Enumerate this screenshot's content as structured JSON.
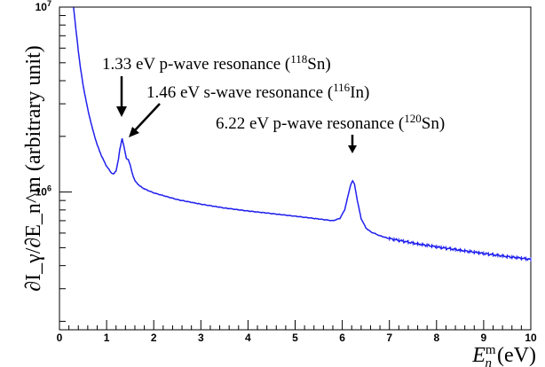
{
  "chart_data": {
    "type": "line",
    "xlabel": "E_n^m (eV)",
    "ylabel": "∂I_γ/∂E_n^m (arbitrary unit)",
    "y_scale": "log",
    "xlim": [
      0,
      10
    ],
    "ylim": [
      180000,
      10000000
    ],
    "x_ticks": [
      "0",
      "1",
      "2",
      "3",
      "4",
      "5",
      "6",
      "7",
      "8",
      "9",
      "10"
    ],
    "y_ticks": [
      {
        "value": 1000000,
        "base": "10",
        "exp": "6"
      },
      {
        "value": 10000000,
        "base": "10",
        "exp": "7"
      }
    ],
    "grid": false,
    "line_color": "#2020ee",
    "series": [
      {
        "x": [
          0.3,
          0.35,
          0.4,
          0.45,
          0.5,
          0.6,
          0.7,
          0.8,
          0.9,
          1.0,
          1.1,
          1.15,
          1.2,
          1.25,
          1.28,
          1.33,
          1.38,
          1.42,
          1.46,
          1.5,
          1.55,
          1.6,
          1.7,
          1.8,
          2.0,
          2.5,
          3.0,
          3.5,
          4.0,
          4.5,
          5.0,
          5.5,
          5.8,
          5.95,
          6.05,
          6.12,
          6.18,
          6.22,
          6.26,
          6.32,
          6.4,
          6.5,
          6.6,
          6.8,
          7.0,
          7.5,
          8.0,
          8.5,
          9.0,
          9.5,
          10.0
        ],
        "y": [
          10000000,
          7500000,
          5800000,
          4600000,
          3800000,
          2800000,
          2200000,
          1800000,
          1550000,
          1380000,
          1270000,
          1250000,
          1300000,
          1500000,
          1700000,
          1950000,
          1700000,
          1520000,
          1500000,
          1400000,
          1250000,
          1150000,
          1080000,
          1040000,
          990000,
          910000,
          860000,
          820000,
          790000,
          765000,
          740000,
          715000,
          700000,
          720000,
          800000,
          950000,
          1100000,
          1150000,
          1100000,
          900000,
          720000,
          640000,
          610000,
          580000,
          560000,
          530000,
          505000,
          485000,
          465000,
          448000,
          432000
        ]
      }
    ],
    "annotations": [
      {
        "text": "1.33 eV p-wave resonance (",
        "isotope_mass": "118",
        "element": "Sn",
        "close": ")",
        "target_x": 1.33
      },
      {
        "text": "1.46 eV s-wave resonance (",
        "isotope_mass": "116",
        "element": "In",
        "close": ")",
        "target_x": 1.46
      },
      {
        "text": "6.22 eV p-wave resonance (",
        "isotope_mass": "120",
        "element": "Sn",
        "close": ")",
        "target_x": 6.22
      }
    ]
  }
}
